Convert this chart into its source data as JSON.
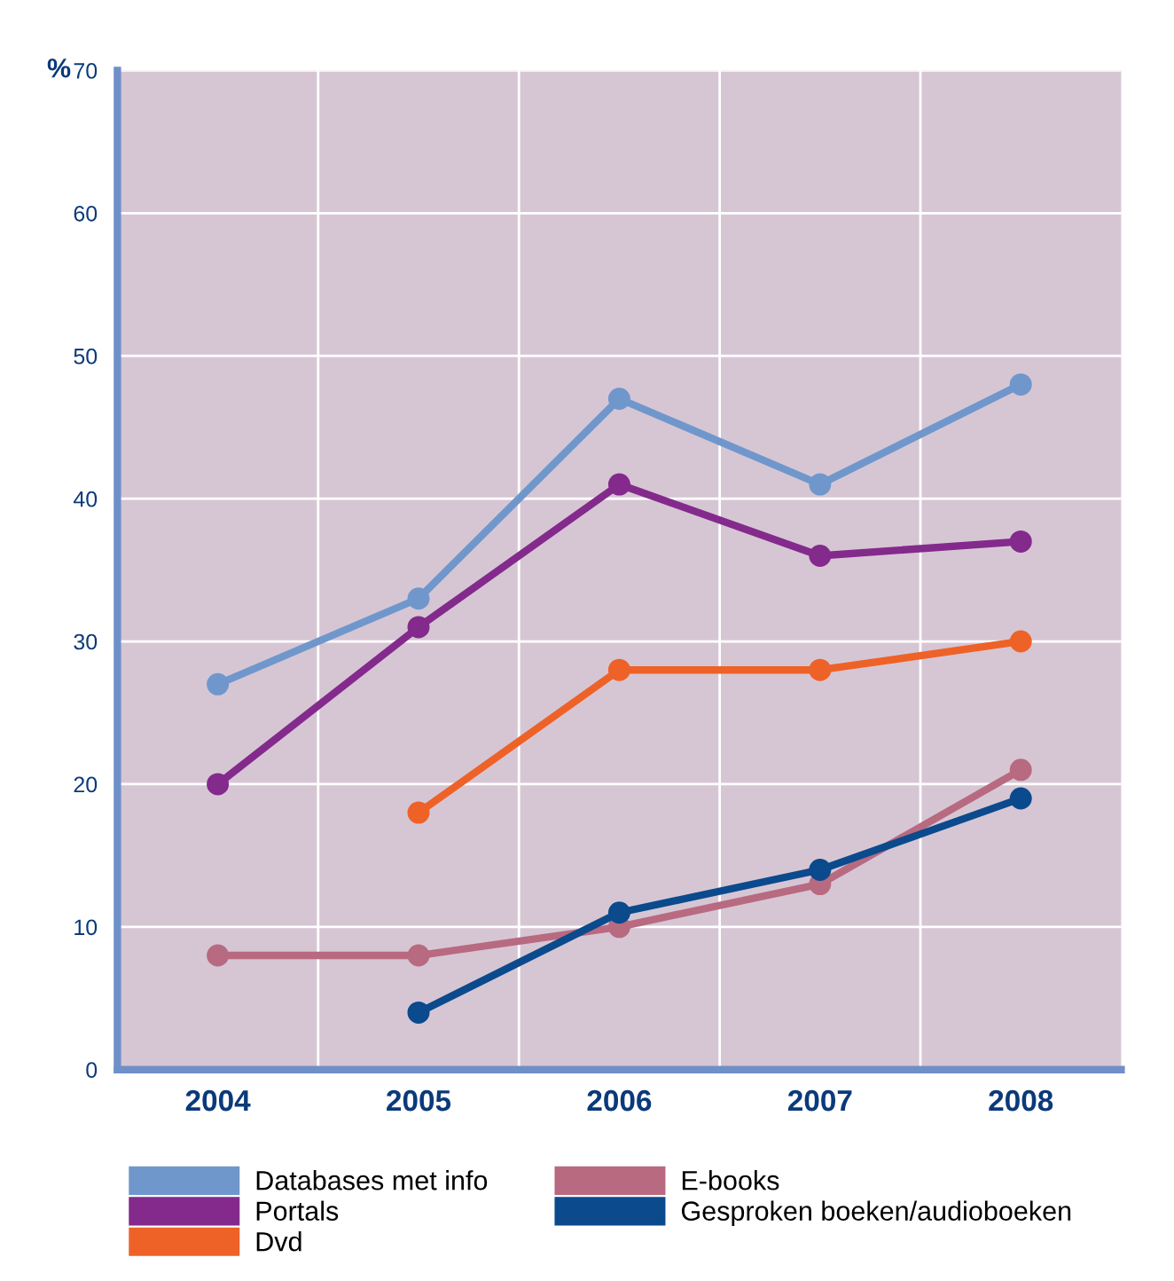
{
  "chart_data": {
    "type": "line",
    "ylabel": "%",
    "categories": [
      "2004",
      "2005",
      "2006",
      "2007",
      "2008"
    ],
    "series": [
      {
        "name": "Databases met info",
        "color": "#7097cc",
        "values": [
          27,
          33,
          47,
          41,
          48
        ]
      },
      {
        "name": "Portals",
        "color": "#842a8c",
        "values": [
          20,
          31,
          41,
          36,
          37
        ]
      },
      {
        "name": "Dvd",
        "color": "#ee6228",
        "values": [
          null,
          18,
          28,
          28,
          30
        ]
      },
      {
        "name": "E-books",
        "color": "#b86a80",
        "values": [
          8,
          8,
          10,
          13,
          21
        ]
      },
      {
        "name": "Gesproken boeken/audioboeken",
        "color": "#0b4a8c",
        "values": [
          null,
          4,
          11,
          14,
          19
        ]
      }
    ],
    "ylim": [
      0,
      70
    ],
    "yticks": [
      0,
      10,
      20,
      30,
      40,
      50,
      60,
      70
    ],
    "grid": true,
    "legend": "bottom",
    "marker": "circle",
    "line_style": "solid"
  }
}
